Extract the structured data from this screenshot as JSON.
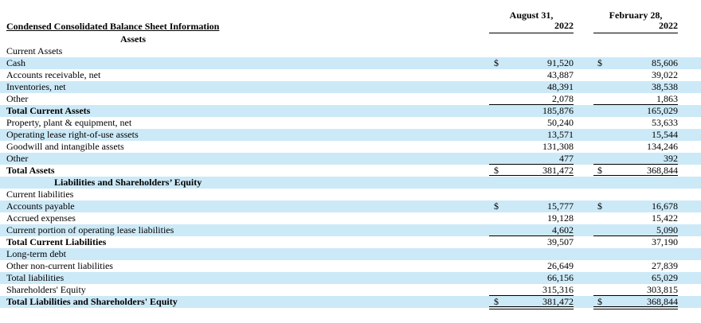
{
  "header": {
    "title": "Condensed Consolidated Balance Sheet Information",
    "col1_line1": "August 31,",
    "col1_line2": "2022",
    "col2_line1": "February 28,",
    "col2_line2": "2022"
  },
  "rows": [
    {
      "label": "Assets",
      "style": "section",
      "shade": false,
      "v1": "",
      "v2": "",
      "cur": false
    },
    {
      "label": "Current Assets",
      "style": "normal",
      "shade": false,
      "v1": "",
      "v2": "",
      "cur": false
    },
    {
      "label": "Cash",
      "style": "normal",
      "shade": true,
      "v1": "91,520",
      "v2": "85,606",
      "cur": true,
      "cur_symbol": "$"
    },
    {
      "label": "Accounts receivable, net",
      "style": "normal",
      "shade": false,
      "v1": "43,887",
      "v2": "39,022",
      "cur": false
    },
    {
      "label": "Inventories, net",
      "style": "normal",
      "shade": true,
      "v1": "48,391",
      "v2": "38,538",
      "cur": false
    },
    {
      "label": "Other",
      "style": "normal",
      "shade": false,
      "v1": "2,078",
      "v2": "1,863",
      "cur": false
    },
    {
      "label": "Total Current Assets",
      "style": "bold",
      "shade": true,
      "v1": "185,876",
      "v2": "165,029",
      "cur": false
    },
    {
      "label": "Property, plant & equipment, net",
      "style": "normal",
      "shade": false,
      "v1": "50,240",
      "v2": "53,633",
      "cur": false
    },
    {
      "label": "Operating lease right-of-use assets",
      "style": "normal",
      "shade": true,
      "v1": "13,571",
      "v2": "15,544",
      "cur": false
    },
    {
      "label": "Goodwill and intangible assets",
      "style": "normal",
      "shade": false,
      "v1": "131,308",
      "v2": "134,246",
      "cur": false
    },
    {
      "label": "Other",
      "style": "normal",
      "shade": true,
      "v1": "477",
      "v2": "392",
      "cur": false
    },
    {
      "label": "Total Assets",
      "style": "bold",
      "shade": false,
      "v1": "381,472",
      "v2": "368,844",
      "cur": true,
      "cur_symbol": "$"
    },
    {
      "label": "Liabilities and Shareholders’ Equity",
      "style": "section2",
      "shade": true,
      "v1": "",
      "v2": "",
      "cur": false
    },
    {
      "label": "Current liabilities",
      "style": "normal",
      "shade": false,
      "v1": "",
      "v2": "",
      "cur": false
    },
    {
      "label": "Accounts payable",
      "style": "normal",
      "shade": true,
      "v1": "15,777",
      "v2": "16,678",
      "cur": true,
      "cur_symbol": "$"
    },
    {
      "label": "Accrued expenses",
      "style": "normal",
      "shade": false,
      "v1": "19,128",
      "v2": "15,422",
      "cur": false
    },
    {
      "label": "Current portion of operating lease liabilities",
      "style": "normal",
      "shade": true,
      "v1": "4,602",
      "v2": "5,090",
      "cur": false
    },
    {
      "label": "Total Current Liabilities",
      "style": "bold",
      "shade": false,
      "v1": "39,507",
      "v2": "37,190",
      "cur": false
    },
    {
      "label": "Long-term debt",
      "style": "normal",
      "shade": true,
      "v1": "",
      "v2": "",
      "cur": false
    },
    {
      "label": "Other non-current liabilities",
      "style": "normal",
      "shade": false,
      "v1": "26,649",
      "v2": "27,839",
      "cur": false
    },
    {
      "label": "Total liabilities",
      "style": "normal",
      "shade": true,
      "v1": "66,156",
      "v2": "65,029",
      "cur": false
    },
    {
      "label": "Shareholders' Equity",
      "style": "normal",
      "shade": false,
      "v1": "315,316",
      "v2": "303,815",
      "cur": false
    },
    {
      "label": "Total Liabilities and Shareholders' Equity",
      "style": "bold",
      "shade": true,
      "v1": "381,472",
      "v2": "368,844",
      "cur": true,
      "cur_symbol": "$"
    }
  ]
}
